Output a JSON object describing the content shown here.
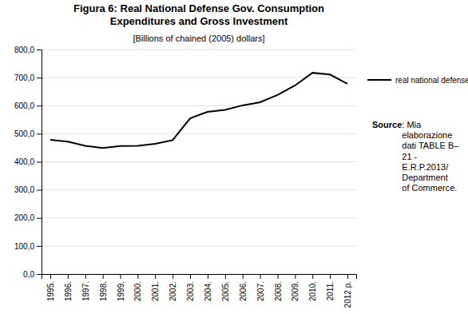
{
  "chart_data": {
    "type": "line",
    "title": "Figura 6: Real National Defense Gov. Consumption\nExpenditures and Gross Investment",
    "subtitle": "[Billions of chained (2005) dollars]",
    "categories": [
      "1995.",
      "1996.",
      "1997.",
      "1998.",
      "1999.",
      "2000.",
      "2001.",
      "2002.",
      "2003.",
      "2004.",
      "2005.",
      "2006.",
      "2007.",
      "2008.",
      "2009.",
      "2010.",
      "2011.",
      "2012 p."
    ],
    "series": [
      {
        "name": "real national defense",
        "color": "#000000",
        "values": [
          478,
          472,
          457,
          449,
          456,
          457,
          464,
          477,
          555,
          578,
          585,
          601,
          612,
          638,
          672,
          717,
          711,
          678
        ]
      }
    ],
    "ylim": [
      0,
      800
    ],
    "yticks": [
      {
        "value": 0,
        "label": "0,0"
      },
      {
        "value": 100,
        "label": "100,0"
      },
      {
        "value": 200,
        "label": "200,0"
      },
      {
        "value": 300,
        "label": "300,0"
      },
      {
        "value": 400,
        "label": "400,0"
      },
      {
        "value": 500,
        "label": "500,0"
      },
      {
        "value": 600,
        "label": "600,0"
      },
      {
        "value": 700,
        "label": "700,0"
      },
      {
        "value": 800,
        "label": "800,0"
      }
    ],
    "grid": true,
    "legend": "right",
    "annotations": [
      "Source",
      ": Mia\nelaborazione\ndati TABLE B–\n21 -\nE.R.P.2013/\nDepartment\nof Commerce."
    ]
  }
}
